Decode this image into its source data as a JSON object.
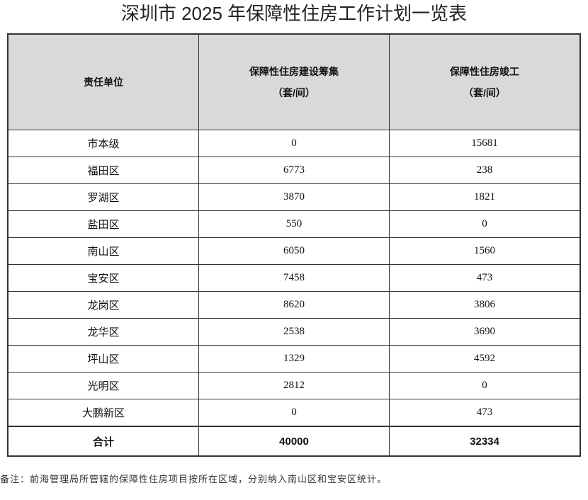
{
  "title": "深圳市 2025 年保障性住房工作计划一览表",
  "table": {
    "headers": [
      {
        "line1": "责任单位",
        "line2": ""
      },
      {
        "line1": "保障性住房建设筹集",
        "line2": "（套/间）"
      },
      {
        "line1": "保障性住房竣工",
        "line2": "（套/间）"
      }
    ],
    "rows": [
      [
        "市本级",
        "0",
        "15681"
      ],
      [
        "福田区",
        "6773",
        "238"
      ],
      [
        "罗湖区",
        "3870",
        "1821"
      ],
      [
        "盐田区",
        "550",
        "0"
      ],
      [
        "南山区",
        "6050",
        "1560"
      ],
      [
        "宝安区",
        "7458",
        "473"
      ],
      [
        "龙岗区",
        "8620",
        "3806"
      ],
      [
        "龙华区",
        "2538",
        "3690"
      ],
      [
        "坪山区",
        "1329",
        "4592"
      ],
      [
        "光明区",
        "2812",
        "0"
      ],
      [
        "大鹏新区",
        "0",
        "473"
      ]
    ],
    "total": [
      "合计",
      "40000",
      "32334"
    ]
  },
  "note": "备注：前海管理局所管辖的保障性住房项目按所在区域，分别纳入南山区和宝安区统计。"
}
